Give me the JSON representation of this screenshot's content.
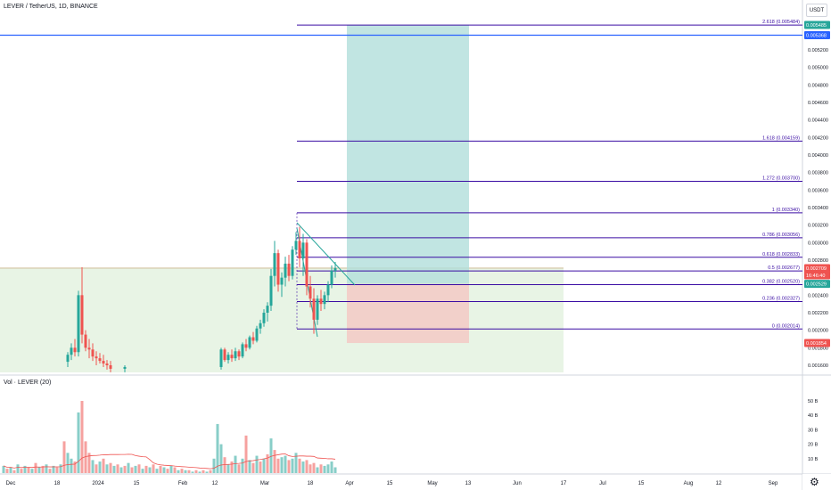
{
  "header": {
    "title": "LEVER / TetherUS, 1D, BINANCE",
    "currency_button": "USDT",
    "volume_label": "Vol · LEVER (20)"
  },
  "colors": {
    "up": "#26a69a",
    "down": "#ef5350",
    "fib_line": "#3a0ca3",
    "blue_line": "#2962ff",
    "target_zone": "#b2dfdb",
    "stop_zone": "#f4c7c3",
    "range_box": "#e4f2e1",
    "trendline": "#26a69a",
    "volume_ma": "#ef5350"
  },
  "chart_data": {
    "type": "candlestick",
    "symbol": "LEVER / TetherUS",
    "interval": "1D",
    "exchange": "BINANCE",
    "price_axis_unit": "USDT",
    "y_ticks": [
      "0.005200",
      "0.005000",
      "0.004800",
      "0.004600",
      "0.004400",
      "0.004200",
      "0.004000",
      "0.003800",
      "0.003600",
      "0.003400",
      "0.003200",
      "0.003000",
      "0.002800",
      "0.002400",
      "0.002200",
      "0.002000",
      "0.001800",
      "0.001600"
    ],
    "volume_ticks": [
      "50 B",
      "40 B",
      "30 B",
      "20 B",
      "10 B"
    ],
    "x_ticks": [
      "Dec",
      "18",
      "2024",
      "15",
      "Feb",
      "12",
      "Mar",
      "18",
      "Apr",
      "15",
      "May",
      "13",
      "Jun",
      "17",
      "Jul",
      "15",
      "Aug",
      "12",
      "Sep"
    ],
    "fib_levels": [
      {
        "label": "2.618 (0.005484)",
        "value": 0.005484
      },
      {
        "label": "1.618 (0.004159)",
        "value": 0.004159
      },
      {
        "label": "1.272 (0.003700)",
        "value": 0.0037
      },
      {
        "label": "1 (0.003340)",
        "value": 0.00334
      },
      {
        "label": "0.786 (0.003056)",
        "value": 0.003056
      },
      {
        "label": "0.618 (0.002833)",
        "value": 0.002833
      },
      {
        "label": "0.5 (0.002677)",
        "value": 0.002677
      },
      {
        "label": "0.382 (0.002520)",
        "value": 0.00252
      },
      {
        "label": "0.236 (0.002327)",
        "value": 0.002327
      },
      {
        "label": "0 (0.002014)",
        "value": 0.002014
      }
    ],
    "price_badges": [
      {
        "text": "0.005485",
        "color": "#26a69a",
        "value": 0.005485
      },
      {
        "text": "0.005368",
        "color": "#2962ff",
        "value": 0.005368
      },
      {
        "text": "0.002709",
        "color": "#ef5350",
        "value": 0.002709
      },
      {
        "text": "16:46:40",
        "color": "#ef5350",
        "value": 0.00263
      },
      {
        "text": "0.002529",
        "color": "#26a69a",
        "value": 0.002529
      },
      {
        "text": "0.001854",
        "color": "#ef5350",
        "value": 0.001854
      }
    ],
    "blue_horizontal_line": 0.005368,
    "position": {
      "entry": 0.002529,
      "target": 0.005485,
      "stop": 0.001854
    },
    "range_box_top": 0.002709,
    "candles": [
      {
        "x": 76,
        "o": 0.00164,
        "h": 0.00175,
        "l": 0.00158,
        "c": 0.00172
      },
      {
        "x": 80,
        "o": 0.00172,
        "h": 0.00185,
        "l": 0.00166,
        "c": 0.0018
      },
      {
        "x": 84,
        "o": 0.0018,
        "h": 0.0019,
        "l": 0.0017,
        "c": 0.00175
      },
      {
        "x": 88,
        "o": 0.00175,
        "h": 0.00245,
        "l": 0.0017,
        "c": 0.0024
      },
      {
        "x": 92,
        "o": 0.0024,
        "h": 0.00272,
        "l": 0.00185,
        "c": 0.00195
      },
      {
        "x": 96,
        "o": 0.00195,
        "h": 0.002,
        "l": 0.00176,
        "c": 0.0018
      },
      {
        "x": 100,
        "o": 0.0018,
        "h": 0.0019,
        "l": 0.00168,
        "c": 0.00178
      },
      {
        "x": 104,
        "o": 0.00178,
        "h": 0.00185,
        "l": 0.00165,
        "c": 0.0017
      },
      {
        "x": 108,
        "o": 0.0017,
        "h": 0.00176,
        "l": 0.0016,
        "c": 0.00168
      },
      {
        "x": 112,
        "o": 0.00168,
        "h": 0.00174,
        "l": 0.00162,
        "c": 0.00165
      },
      {
        "x": 116,
        "o": 0.00165,
        "h": 0.00172,
        "l": 0.00158,
        "c": 0.00162
      },
      {
        "x": 120,
        "o": 0.00162,
        "h": 0.00166,
        "l": 0.00155,
        "c": 0.0016
      },
      {
        "x": 124,
        "o": 0.0016,
        "h": 0.00165,
        "l": 0.00152,
        "c": 0.00156
      },
      {
        "x": 140,
        "o": 0.00156,
        "h": 0.0016,
        "l": 0.00152,
        "c": 0.00158
      },
      {
        "x": 248,
        "o": 0.00158,
        "h": 0.0018,
        "l": 0.00155,
        "c": 0.00178
      },
      {
        "x": 252,
        "o": 0.00178,
        "h": 0.0018,
        "l": 0.00164,
        "c": 0.00166
      },
      {
        "x": 256,
        "o": 0.00166,
        "h": 0.00175,
        "l": 0.00162,
        "c": 0.00172
      },
      {
        "x": 260,
        "o": 0.00172,
        "h": 0.00178,
        "l": 0.00164,
        "c": 0.00168
      },
      {
        "x": 264,
        "o": 0.00168,
        "h": 0.0018,
        "l": 0.00165,
        "c": 0.00176
      },
      {
        "x": 268,
        "o": 0.00176,
        "h": 0.00178,
        "l": 0.00166,
        "c": 0.0017
      },
      {
        "x": 272,
        "o": 0.0017,
        "h": 0.00186,
        "l": 0.00168,
        "c": 0.00184
      },
      {
        "x": 276,
        "o": 0.00184,
        "h": 0.0019,
        "l": 0.00176,
        "c": 0.0018
      },
      {
        "x": 280,
        "o": 0.0018,
        "h": 0.00194,
        "l": 0.00178,
        "c": 0.00192
      },
      {
        "x": 284,
        "o": 0.00192,
        "h": 0.00198,
        "l": 0.00184,
        "c": 0.00188
      },
      {
        "x": 288,
        "o": 0.00188,
        "h": 0.00205,
        "l": 0.00186,
        "c": 0.00202
      },
      {
        "x": 292,
        "o": 0.00202,
        "h": 0.00212,
        "l": 0.00196,
        "c": 0.00208
      },
      {
        "x": 296,
        "o": 0.00208,
        "h": 0.00224,
        "l": 0.00204,
        "c": 0.0022
      },
      {
        "x": 300,
        "o": 0.0022,
        "h": 0.00232,
        "l": 0.0021,
        "c": 0.00228
      },
      {
        "x": 304,
        "o": 0.00228,
        "h": 0.0027,
        "l": 0.00222,
        "c": 0.00262
      },
      {
        "x": 308,
        "o": 0.00262,
        "h": 0.00302,
        "l": 0.0025,
        "c": 0.00288
      },
      {
        "x": 312,
        "o": 0.00288,
        "h": 0.00292,
        "l": 0.00244,
        "c": 0.00252
      },
      {
        "x": 316,
        "o": 0.00252,
        "h": 0.00266,
        "l": 0.00238,
        "c": 0.0026
      },
      {
        "x": 320,
        "o": 0.0026,
        "h": 0.00284,
        "l": 0.0025,
        "c": 0.00276
      },
      {
        "x": 324,
        "o": 0.00276,
        "h": 0.00286,
        "l": 0.00256,
        "c": 0.00262
      },
      {
        "x": 328,
        "o": 0.00262,
        "h": 0.00296,
        "l": 0.00258,
        "c": 0.00292
      },
      {
        "x": 332,
        "o": 0.00292,
        "h": 0.00312,
        "l": 0.00286,
        "c": 0.00302
      },
      {
        "x": 336,
        "o": 0.00302,
        "h": 0.00318,
        "l": 0.00272,
        "c": 0.00282
      },
      {
        "x": 340,
        "o": 0.00282,
        "h": 0.0031,
        "l": 0.00262,
        "c": 0.003
      },
      {
        "x": 344,
        "o": 0.003,
        "h": 0.00304,
        "l": 0.0024,
        "c": 0.0025
      },
      {
        "x": 348,
        "o": 0.0025,
        "h": 0.00262,
        "l": 0.00226,
        "c": 0.00236
      },
      {
        "x": 352,
        "o": 0.00236,
        "h": 0.00248,
        "l": 0.00196,
        "c": 0.00212
      },
      {
        "x": 356,
        "o": 0.00212,
        "h": 0.0024,
        "l": 0.00206,
        "c": 0.00236
      },
      {
        "x": 360,
        "o": 0.00236,
        "h": 0.00246,
        "l": 0.00222,
        "c": 0.0023
      },
      {
        "x": 364,
        "o": 0.0023,
        "h": 0.00244,
        "l": 0.00224,
        "c": 0.0024
      },
      {
        "x": 368,
        "o": 0.0024,
        "h": 0.00256,
        "l": 0.00232,
        "c": 0.00252
      },
      {
        "x": 372,
        "o": 0.00252,
        "h": 0.00274,
        "l": 0.00248,
        "c": 0.00268
      },
      {
        "x": 376,
        "o": 0.00268,
        "h": 0.00278,
        "l": 0.0026,
        "c": 0.00271
      }
    ],
    "volume_bars": [
      {
        "x": 4,
        "v": 5,
        "up": true
      },
      {
        "x": 8,
        "v": 3,
        "up": false
      },
      {
        "x": 12,
        "v": 4,
        "up": true
      },
      {
        "x": 16,
        "v": 2,
        "up": false
      },
      {
        "x": 20,
        "v": 6,
        "up": true
      },
      {
        "x": 24,
        "v": 3,
        "up": false
      },
      {
        "x": 28,
        "v": 5,
        "up": true
      },
      {
        "x": 32,
        "v": 4,
        "up": false
      },
      {
        "x": 36,
        "v": 3,
        "up": true
      },
      {
        "x": 40,
        "v": 7,
        "up": false
      },
      {
        "x": 44,
        "v": 4,
        "up": true
      },
      {
        "x": 48,
        "v": 5,
        "up": false
      },
      {
        "x": 52,
        "v": 6,
        "up": true
      },
      {
        "x": 56,
        "v": 3,
        "up": false
      },
      {
        "x": 60,
        "v": 5,
        "up": true
      },
      {
        "x": 64,
        "v": 4,
        "up": false
      },
      {
        "x": 68,
        "v": 6,
        "up": true
      },
      {
        "x": 72,
        "v": 22,
        "up": false
      },
      {
        "x": 76,
        "v": 14,
        "up": true
      },
      {
        "x": 80,
        "v": 10,
        "up": true
      },
      {
        "x": 84,
        "v": 8,
        "up": false
      },
      {
        "x": 88,
        "v": 42,
        "up": true
      },
      {
        "x": 92,
        "v": 50,
        "up": false
      },
      {
        "x": 96,
        "v": 22,
        "up": false
      },
      {
        "x": 100,
        "v": 14,
        "up": false
      },
      {
        "x": 104,
        "v": 9,
        "up": true
      },
      {
        "x": 108,
        "v": 6,
        "up": false
      },
      {
        "x": 112,
        "v": 8,
        "up": true
      },
      {
        "x": 116,
        "v": 10,
        "up": false
      },
      {
        "x": 120,
        "v": 6,
        "up": true
      },
      {
        "x": 124,
        "v": 7,
        "up": false
      },
      {
        "x": 128,
        "v": 5,
        "up": true
      },
      {
        "x": 132,
        "v": 6,
        "up": false
      },
      {
        "x": 136,
        "v": 4,
        "up": true
      },
      {
        "x": 140,
        "v": 5,
        "up": false
      },
      {
        "x": 144,
        "v": 7,
        "up": true
      },
      {
        "x": 148,
        "v": 4,
        "up": false
      },
      {
        "x": 152,
        "v": 5,
        "up": true
      },
      {
        "x": 156,
        "v": 6,
        "up": false
      },
      {
        "x": 160,
        "v": 3,
        "up": true
      },
      {
        "x": 164,
        "v": 5,
        "up": false
      },
      {
        "x": 168,
        "v": 4,
        "up": true
      },
      {
        "x": 172,
        "v": 6,
        "up": false
      },
      {
        "x": 176,
        "v": 3,
        "up": true
      },
      {
        "x": 180,
        "v": 5,
        "up": false
      },
      {
        "x": 184,
        "v": 4,
        "up": true
      },
      {
        "x": 188,
        "v": 3,
        "up": false
      },
      {
        "x": 192,
        "v": 5,
        "up": true
      },
      {
        "x": 196,
        "v": 4,
        "up": false
      },
      {
        "x": 200,
        "v": 2,
        "up": true
      },
      {
        "x": 204,
        "v": 3,
        "up": false
      },
      {
        "x": 208,
        "v": 2,
        "up": true
      },
      {
        "x": 212,
        "v": 2,
        "up": false
      },
      {
        "x": 216,
        "v": 1,
        "up": true
      },
      {
        "x": 220,
        "v": 2,
        "up": false
      },
      {
        "x": 224,
        "v": 1,
        "up": true
      },
      {
        "x": 228,
        "v": 2,
        "up": false
      },
      {
        "x": 232,
        "v": 1,
        "up": true
      },
      {
        "x": 236,
        "v": 2,
        "up": false
      },
      {
        "x": 240,
        "v": 10,
        "up": true
      },
      {
        "x": 244,
        "v": 34,
        "up": true
      },
      {
        "x": 248,
        "v": 20,
        "up": true
      },
      {
        "x": 252,
        "v": 11,
        "up": false
      },
      {
        "x": 256,
        "v": 6,
        "up": true
      },
      {
        "x": 260,
        "v": 8,
        "up": false
      },
      {
        "x": 264,
        "v": 12,
        "up": true
      },
      {
        "x": 268,
        "v": 6,
        "up": false
      },
      {
        "x": 272,
        "v": 10,
        "up": true
      },
      {
        "x": 276,
        "v": 26,
        "up": false
      },
      {
        "x": 280,
        "v": 9,
        "up": true
      },
      {
        "x": 284,
        "v": 7,
        "up": false
      },
      {
        "x": 288,
        "v": 12,
        "up": true
      },
      {
        "x": 292,
        "v": 8,
        "up": false
      },
      {
        "x": 296,
        "v": 10,
        "up": true
      },
      {
        "x": 300,
        "v": 13,
        "up": false
      },
      {
        "x": 304,
        "v": 24,
        "up": true
      },
      {
        "x": 308,
        "v": 16,
        "up": false
      },
      {
        "x": 312,
        "v": 10,
        "up": false
      },
      {
        "x": 316,
        "v": 11,
        "up": true
      },
      {
        "x": 320,
        "v": 12,
        "up": true
      },
      {
        "x": 324,
        "v": 9,
        "up": false
      },
      {
        "x": 328,
        "v": 10,
        "up": true
      },
      {
        "x": 332,
        "v": 14,
        "up": true
      },
      {
        "x": 336,
        "v": 10,
        "up": false
      },
      {
        "x": 340,
        "v": 8,
        "up": true
      },
      {
        "x": 344,
        "v": 9,
        "up": false
      },
      {
        "x": 348,
        "v": 6,
        "up": false
      },
      {
        "x": 352,
        "v": 7,
        "up": false
      },
      {
        "x": 356,
        "v": 4,
        "up": true
      },
      {
        "x": 360,
        "v": 6,
        "up": false
      },
      {
        "x": 364,
        "v": 5,
        "up": true
      },
      {
        "x": 368,
        "v": 6,
        "up": true
      },
      {
        "x": 372,
        "v": 8,
        "up": true
      },
      {
        "x": 376,
        "v": 4,
        "up": true
      }
    ]
  }
}
